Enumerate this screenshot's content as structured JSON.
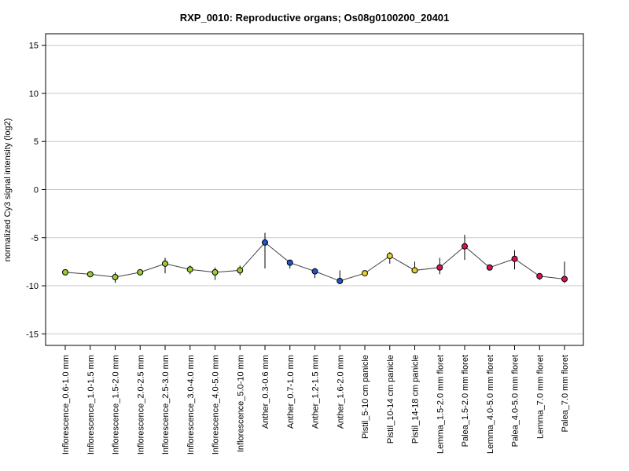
{
  "chart_data": {
    "type": "line",
    "title": "RXP_0010: Reproductive organs; Os08g0100200_20401",
    "xlabel": "",
    "ylabel": "normalized Cy3 signal intensity (log2)",
    "ylim": [
      -16.2,
      16.2
    ],
    "yticks": [
      -15,
      -10,
      -5,
      0,
      5,
      10,
      15
    ],
    "grid": true,
    "legend": "none",
    "line_color": "#404040",
    "categories": [
      "Inflorescence_0.6-1.0 mm",
      "Inflorescence_1.0-1.5 mm",
      "Inflorescence_1.5-2.0 mm",
      "Inflorescence_2.0-2.5 mm",
      "Inflorescence_2.5-3.0 mm",
      "Inflorescence_3.0-4.0 mm",
      "Inflorescence_4.0-5.0 mm",
      "Inflorescence_5.0-10 mm",
      "Anther_0.3-0.6 mm",
      "Anther_0.7-1.0 mm",
      "Anther_1.2-1.5 mm",
      "Anther_1.6-2.0 mm",
      "Pistil_5-10 cm panicle",
      "Pistil_10-14 cm panicle",
      "Pistil_14-18 cm panicle",
      "Lemma_1.5-2.0 mm floret",
      "Palea_1.5-2.0 mm floret",
      "Lemma_4.0-5.0 mm floret",
      "Palea_4.0-5.0 mm floret",
      "Lemma_7.0 mm floret",
      "Palea_7.0 mm floret"
    ],
    "values": [
      -8.6,
      -8.8,
      -9.1,
      -8.6,
      -7.7,
      -8.3,
      -8.6,
      -8.4,
      -5.5,
      -7.6,
      -8.5,
      -9.5,
      -8.7,
      -6.9,
      -8.4,
      -8.1,
      -5.9,
      -8.1,
      -7.2,
      -9.0,
      -9.3
    ],
    "error_low": [
      -8.9,
      -9.0,
      -9.7,
      -8.8,
      -8.7,
      -8.8,
      -9.4,
      -8.9,
      -8.2,
      -8.2,
      -9.2,
      -9.6,
      -9.0,
      -7.7,
      -8.6,
      -8.8,
      -7.3,
      -8.2,
      -8.3,
      -9.4,
      -9.7
    ],
    "error_high": [
      -8.3,
      -8.6,
      -8.6,
      -8.4,
      -7.1,
      -7.9,
      -8.1,
      -7.9,
      -4.5,
      -7.3,
      -8.2,
      -8.4,
      -8.4,
      -6.5,
      -7.5,
      -7.1,
      -4.7,
      -7.9,
      -6.3,
      -8.9,
      -7.5
    ],
    "point_colors": [
      "#9acd32",
      "#9acd32",
      "#9acd32",
      "#9acd32",
      "#9acd32",
      "#9acd32",
      "#9acd32",
      "#9acd32",
      "#1e56c8",
      "#1e56c8",
      "#1e56c8",
      "#1e56c8",
      "#e6d22a",
      "#e6d22a",
      "#e6d22a",
      "#d4145a",
      "#d4145a",
      "#d4145a",
      "#d4145a",
      "#d4145a",
      "#d4145a"
    ]
  }
}
